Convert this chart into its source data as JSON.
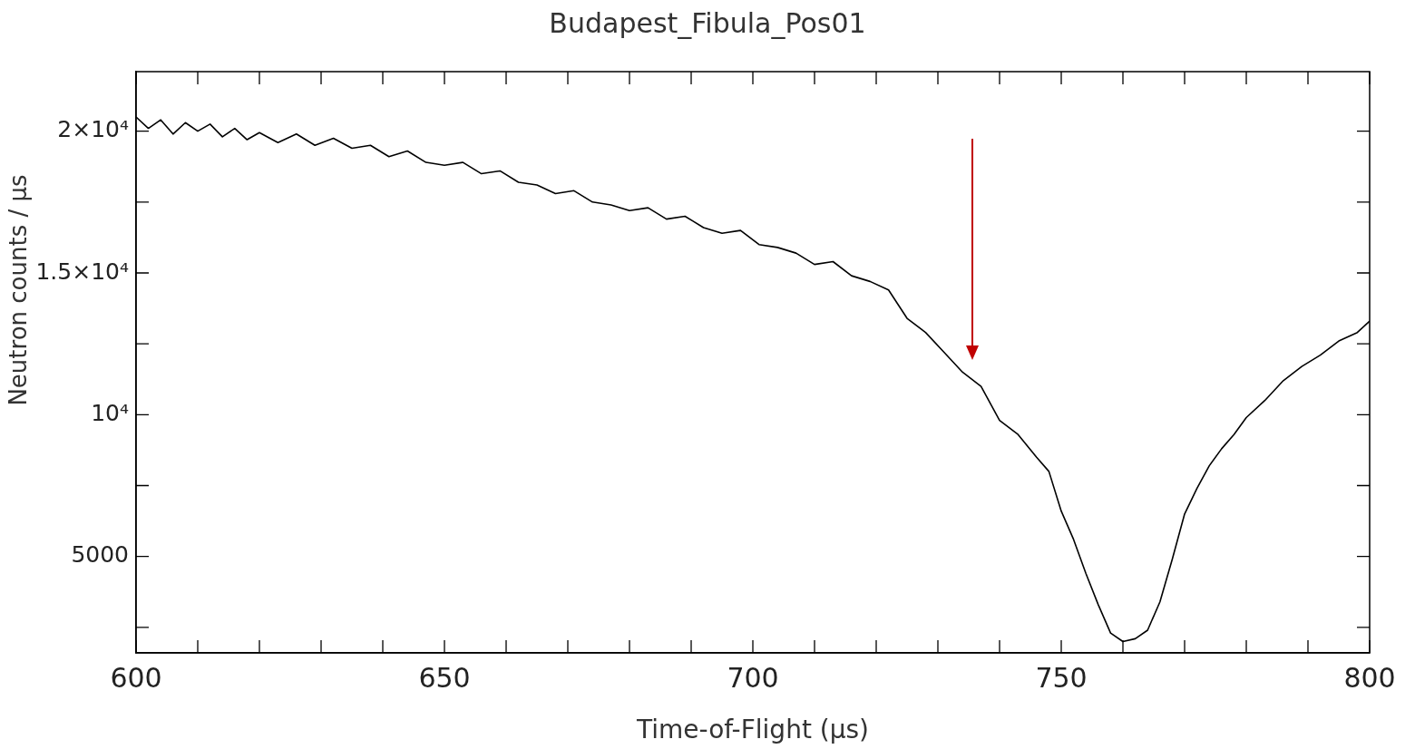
{
  "chart_data": {
    "type": "line",
    "title": "Budapest_Fibula_Pos01",
    "xlabel": "Time-of-Flight (μs)",
    "ylabel": "Neutron counts / μs",
    "x": [
      600,
      602,
      604,
      606,
      608,
      610,
      612,
      614,
      616,
      618,
      620,
      623,
      626,
      629,
      632,
      635,
      638,
      641,
      644,
      647,
      650,
      653,
      656,
      659,
      662,
      665,
      668,
      671,
      674,
      677,
      680,
      683,
      686,
      689,
      692,
      695,
      698,
      701,
      704,
      707,
      710,
      713,
      716,
      719,
      722,
      725,
      728,
      731,
      734,
      737,
      740,
      743,
      746,
      748,
      750,
      752,
      754,
      756,
      758,
      760,
      762,
      764,
      766,
      768,
      770,
      772,
      774,
      776,
      778,
      780,
      783,
      786,
      789,
      792,
      795,
      798,
      800
    ],
    "series": [
      {
        "color": "#000000",
        "values": [
          20500,
          20100,
          20400,
          19900,
          20300,
          20000,
          20250,
          19800,
          20100,
          19700,
          19950,
          19600,
          19900,
          19500,
          19750,
          19400,
          19500,
          19100,
          19300,
          18900,
          18800,
          18900,
          18500,
          18600,
          18200,
          18100,
          17800,
          17900,
          17500,
          17400,
          17200,
          17300,
          16900,
          17000,
          16600,
          16400,
          16500,
          16000,
          15900,
          15700,
          15300,
          15400,
          14900,
          14700,
          14400,
          13400,
          12900,
          12200,
          11500,
          11000,
          9800,
          9300,
          8500,
          8000,
          6600,
          5600,
          4400,
          3300,
          2300,
          2000,
          2100,
          2400,
          3400,
          4900,
          6500,
          7400,
          8200,
          8800,
          9300,
          9900,
          10500,
          11200,
          11700,
          12100,
          12600,
          12900,
          13300
        ]
      }
    ],
    "xlim": [
      600,
      800
    ],
    "ylim": [
      1600,
      22100
    ],
    "xticks": [
      600,
      {
        "value": 610,
        "label": null
      },
      {
        "value": 620,
        "label": null
      },
      {
        "value": 630,
        "label": null
      },
      {
        "value": 640,
        "label": null
      },
      650,
      {
        "value": 660,
        "label": null
      },
      {
        "value": 670,
        "label": null
      },
      {
        "value": 680,
        "label": null
      },
      {
        "value": 690,
        "label": null
      },
      700,
      {
        "value": 710,
        "label": null
      },
      {
        "value": 720,
        "label": null
      },
      {
        "value": 730,
        "label": null
      },
      {
        "value": 740,
        "label": null
      },
      750,
      {
        "value": 760,
        "label": null
      },
      {
        "value": 770,
        "label": null
      },
      {
        "value": 780,
        "label": null
      },
      {
        "value": 790,
        "label": null
      },
      800
    ],
    "yticks": [
      {
        "value": 2500,
        "label": null
      },
      5000,
      {
        "value": 7500,
        "label": null
      },
      {
        "value": 10000,
        "label": "10⁴"
      },
      {
        "value": 12500,
        "label": null
      },
      {
        "value": 15000,
        "label": "1.5×10⁴"
      },
      {
        "value": 17500,
        "label": null
      },
      {
        "value": 20000,
        "label": "2×10⁴"
      }
    ],
    "grid": false,
    "legend": false,
    "marker": "none",
    "line_style": "solid"
  }
}
